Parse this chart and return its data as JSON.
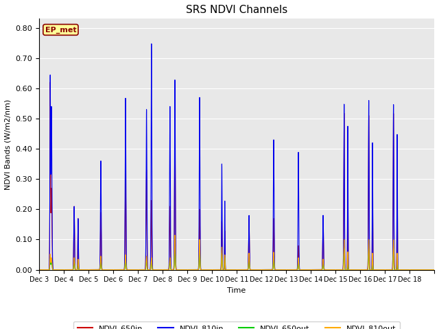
{
  "title": "SRS NDVI Channels",
  "ylabel": "NDVI Bands (W/m2/nm)",
  "xlabel": "Time",
  "annotation": "EP_met",
  "ylim": [
    0.0,
    0.83
  ],
  "yticks": [
    0.0,
    0.1,
    0.2,
    0.3,
    0.4,
    0.5,
    0.6,
    0.7,
    0.8
  ],
  "xtick_labels": [
    "Dec 3",
    "Dec 4",
    "Dec 5",
    "Dec 6",
    "Dec 7",
    "Dec 8",
    "Dec 9",
    "Dec 10",
    "Dec 11",
    "Dec 12",
    "Dec 13",
    "Dec 14",
    "Dec 15",
    "Dec 16",
    "Dec 17",
    "Dec 18"
  ],
  "colors": {
    "NDVI_650in": "#CC0000",
    "NDVI_810in": "#0000EE",
    "NDVI_650out": "#00CC00",
    "NDVI_810out": "#FFAA00"
  },
  "background_color": "#E8E8E8",
  "annotation_bg": "#FFFF99",
  "annotation_border": "#8B0000",
  "spike_params": [
    [
      0.45,
      0.012,
      0.61,
      0.62,
      0.035,
      0.05
    ],
    [
      0.5,
      0.02,
      0.27,
      0.54,
      0.03,
      0.04
    ],
    [
      1.42,
      0.015,
      0.21,
      0.21,
      0.03,
      0.04
    ],
    [
      1.58,
      0.012,
      0.17,
      0.17,
      0.025,
      0.035
    ],
    [
      2.5,
      0.015,
      0.19,
      0.36,
      0.03,
      0.045
    ],
    [
      3.5,
      0.015,
      0.33,
      0.57,
      0.035,
      0.05
    ],
    [
      4.35,
      0.015,
      0.33,
      0.53,
      0.03,
      0.045
    ],
    [
      4.55,
      0.015,
      0.23,
      0.75,
      0.03,
      0.04
    ],
    [
      5.3,
      0.015,
      0.21,
      0.54,
      0.03,
      0.04
    ],
    [
      5.5,
      0.015,
      0.5,
      0.63,
      0.08,
      0.115
    ],
    [
      6.5,
      0.015,
      0.2,
      0.57,
      0.07,
      0.1
    ],
    [
      7.4,
      0.012,
      0.16,
      0.35,
      0.055,
      0.075
    ],
    [
      7.52,
      0.01,
      0.13,
      0.23,
      0.04,
      0.05
    ],
    [
      8.5,
      0.015,
      0.17,
      0.18,
      0.04,
      0.055
    ],
    [
      9.5,
      0.015,
      0.17,
      0.43,
      0.04,
      0.058
    ],
    [
      10.5,
      0.015,
      0.08,
      0.39,
      0.025,
      0.04
    ],
    [
      11.5,
      0.015,
      0.17,
      0.18,
      0.025,
      0.035
    ],
    [
      12.35,
      0.013,
      0.52,
      0.55,
      0.07,
      0.1
    ],
    [
      12.5,
      0.01,
      0.35,
      0.48,
      0.04,
      0.06
    ],
    [
      13.35,
      0.013,
      0.51,
      0.56,
      0.07,
      0.1
    ],
    [
      13.5,
      0.01,
      0.3,
      0.42,
      0.04,
      0.055
    ],
    [
      14.35,
      0.013,
      0.52,
      0.55,
      0.07,
      0.1
    ],
    [
      14.5,
      0.01,
      0.32,
      0.45,
      0.04,
      0.055
    ]
  ],
  "n_days": 16,
  "n_points": 5000
}
